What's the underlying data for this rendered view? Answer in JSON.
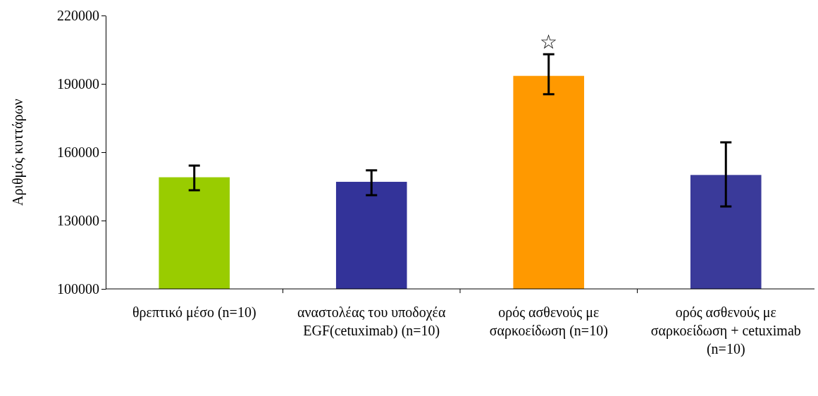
{
  "chart_data": {
    "type": "bar",
    "ylabel": "Αριθμός κυττάρων",
    "categories": [
      "θρεπτικό μέσο  (n=10)",
      "αναστολέας του υποδοχέα EGF(cetuximab) (n=10)",
      "ορός ασθενούς με σαρκοείδωση  (n=10)",
      "ορός ασθενούς με σαρκοείδωση  + cetuximab (n=10)"
    ],
    "values": [
      149000,
      147000,
      193500,
      150000
    ],
    "colors": [
      "#99cc00",
      "#333399",
      "#ff9900",
      "#3a3a9a"
    ],
    "errors": [
      [
        143300,
        154100
      ],
      [
        141100,
        152000
      ],
      [
        185400,
        203000
      ],
      [
        136200,
        164300
      ]
    ],
    "ylim": [
      100000,
      220000
    ],
    "yticks": [
      100000,
      130000,
      160000,
      190000,
      220000
    ],
    "grid": false,
    "annotations": [
      "☆"
    ]
  }
}
